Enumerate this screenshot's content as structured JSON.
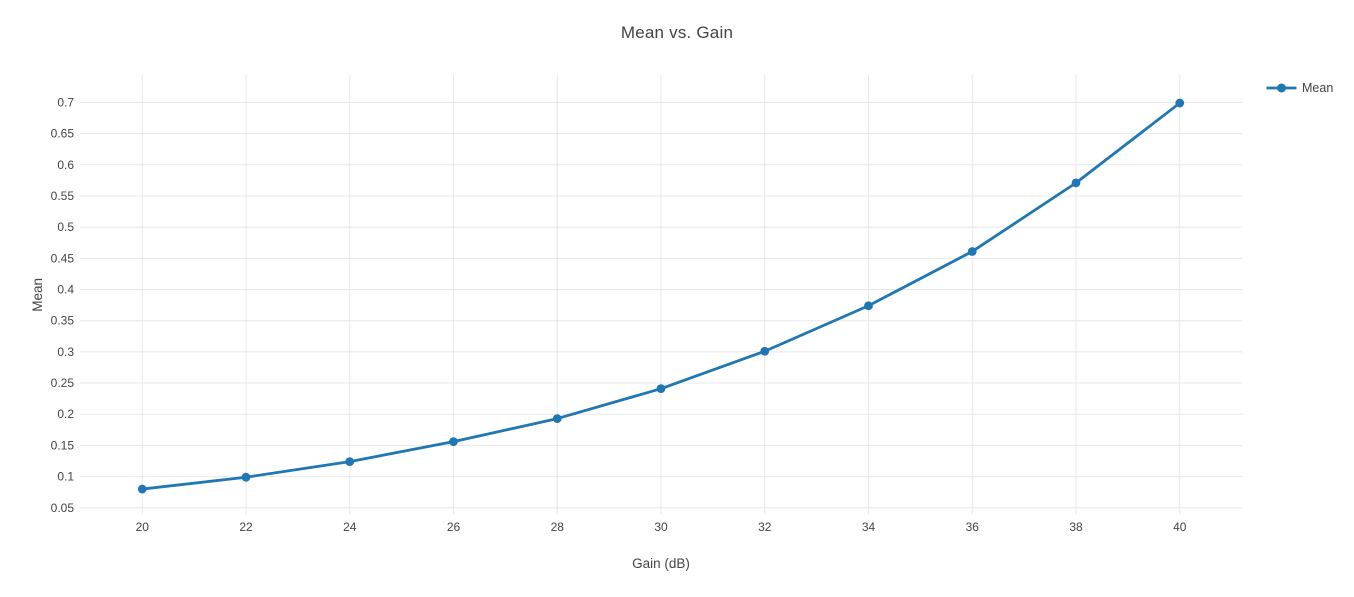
{
  "page": {
    "background": "#ffffff"
  },
  "chart_data": {
    "type": "line",
    "title": "Mean vs. Gain",
    "xlabel": "Gain (dB)",
    "ylabel": "Mean",
    "series": [
      {
        "name": "Mean",
        "mode": "lines+markers",
        "color": "#1f77b4",
        "x": [
          20,
          22,
          24,
          26,
          28,
          30,
          32,
          34,
          36,
          38,
          40
        ],
        "y": [
          0.08,
          0.099,
          0.124,
          0.156,
          0.193,
          0.241,
          0.301,
          0.374,
          0.461,
          0.571,
          0.699
        ]
      }
    ],
    "xlim": [
      18.8,
      41.2
    ],
    "ylim": [
      0.04,
      0.744
    ],
    "xticks": [
      20,
      22,
      24,
      26,
      28,
      30,
      32,
      34,
      36,
      38,
      40
    ],
    "yticks": [
      0.05,
      0.1,
      0.15,
      0.2,
      0.25,
      0.3,
      0.35,
      0.4,
      0.45,
      0.5,
      0.55,
      0.6,
      0.65,
      0.7
    ],
    "grid": true,
    "legend": {
      "position": "top-right-outside",
      "entries": [
        "Mean"
      ]
    },
    "colors": {
      "line": "#1f77b4",
      "grid": "#e8e8e8",
      "text": "#444444",
      "plot_background": "#ffffff"
    }
  }
}
